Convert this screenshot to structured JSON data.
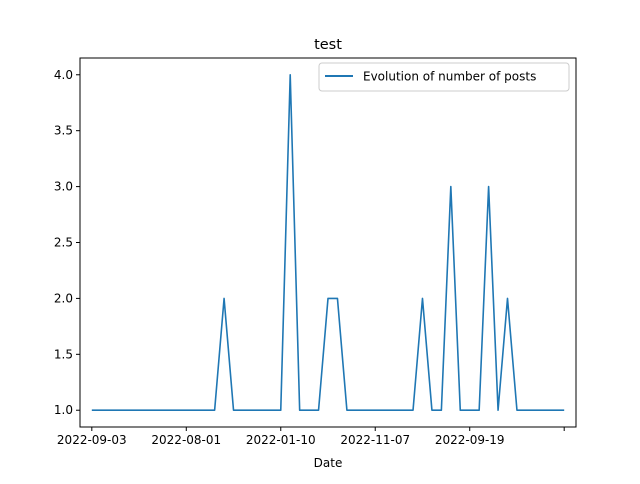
{
  "chart_data": {
    "type": "line",
    "title": "test",
    "xlabel": "Date",
    "ylabel": "",
    "ylim": [
      0.85,
      4.15
    ],
    "xlim": [
      -1.25,
      51.25
    ],
    "x_tick_positions": [
      0,
      10,
      20,
      30,
      40,
      50
    ],
    "x_tick_labels": [
      "2022-09-03",
      "2022-08-01",
      "2022-01-10",
      "2022-11-07",
      "2022-09-19",
      ""
    ],
    "y_ticks": [
      1.0,
      1.5,
      2.0,
      2.5,
      3.0,
      3.5,
      4.0
    ],
    "y_tick_labels": [
      "1.0",
      "1.5",
      "2.0",
      "2.5",
      "3.0",
      "3.5",
      "4.0"
    ],
    "grid": false,
    "legend_position": "upper right",
    "series": [
      {
        "name": "Evolution of number of posts",
        "color": "#1f77b4",
        "x": [
          0,
          1,
          2,
          3,
          4,
          5,
          6,
          7,
          8,
          9,
          10,
          11,
          12,
          13,
          14,
          15,
          16,
          17,
          18,
          19,
          20,
          21,
          22,
          23,
          24,
          25,
          26,
          27,
          28,
          29,
          30,
          31,
          32,
          33,
          34,
          35,
          36,
          37,
          38,
          39,
          40,
          41,
          42,
          43,
          44,
          45,
          46,
          47,
          48,
          49,
          50
        ],
        "values": [
          1,
          1,
          1,
          1,
          1,
          1,
          1,
          1,
          1,
          1,
          1,
          1,
          1,
          1,
          2,
          1,
          1,
          1,
          1,
          1,
          1,
          4,
          1,
          1,
          1,
          2,
          2,
          1,
          1,
          1,
          1,
          1,
          1,
          1,
          1,
          2,
          1,
          1,
          3,
          1,
          1,
          1,
          3,
          1,
          2,
          1,
          1,
          1,
          1,
          1,
          1
        ]
      }
    ]
  }
}
